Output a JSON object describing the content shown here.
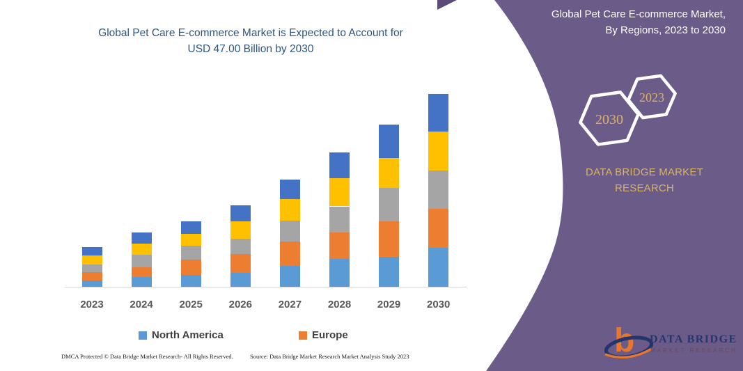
{
  "chart": {
    "title_line1": "Global Pet Care E-commerce Market is Expected to Account for",
    "title_line2": "USD 47.00 Billion by 2030",
    "title_color": "#2E567F"
  },
  "chart_data": {
    "type": "bar",
    "stacked": true,
    "unit": "USD Billion",
    "title": "Global Pet Care E-commerce Market is Expected to Account for USD 47.00 Billion by 2030",
    "categories": [
      "2023",
      "2024",
      "2025",
      "2026",
      "2027",
      "2028",
      "2029",
      "2030"
    ],
    "series": [
      {
        "name": "North America",
        "color": "#5B9BD5",
        "values": [
          1.7,
          2.5,
          3.0,
          3.5,
          5.3,
          6.9,
          7.5,
          9.6
        ]
      },
      {
        "name": "Europe",
        "color": "#ED7D31",
        "values": [
          2.0,
          2.4,
          3.7,
          4.6,
          5.9,
          6.4,
          8.5,
          9.5
        ]
      },
      {
        "name": "",
        "color": "#A5A5A5",
        "values": [
          1.9,
          3.0,
          3.4,
          3.7,
          5.0,
          6.4,
          8.1,
          9.3
        ]
      },
      {
        "name": "",
        "color": "#FFC000",
        "values": [
          2.2,
          2.7,
          3.0,
          4.2,
          5.2,
          6.8,
          7.4,
          9.5
        ]
      },
      {
        "name": "",
        "color": "#4472C4",
        "values": [
          2.0,
          2.7,
          3.0,
          3.9,
          4.8,
          6.3,
          8.0,
          9.1
        ]
      }
    ],
    "totals": [
      9.8,
      13.3,
      16.1,
      19.9,
      26.2,
      32.8,
      39.5,
      47.0
    ],
    "ylim": [
      0,
      47
    ],
    "grid": false,
    "legend_position": "bottom",
    "legend_visible_entries": [
      "North America",
      "Europe"
    ]
  },
  "legend": {
    "items": [
      {
        "label": "North America",
        "color": "#5B9BD5"
      },
      {
        "label": "Europe",
        "color": "#ED7D31"
      }
    ]
  },
  "footer": {
    "dmca": "DMCA Protected © Data Bridge Market Research-  All Rights Reserved.",
    "source": "Source: Data Bridge Market Research  Market Analysis Study 2023"
  },
  "panel": {
    "background": "#6A5B88",
    "accent_dark": "#5A4B77",
    "gold": "#D9B365",
    "title_line1": "Global Pet Care E-commerce Market,",
    "title_line2": "By Regions, 2023 to 2030",
    "hexagons": [
      {
        "label": "2030"
      },
      {
        "label": "2023"
      }
    ],
    "brand_line1": "DATA BRIDGE MARKET",
    "brand_line2": "RESEARCH",
    "logo": {
      "letter": "b",
      "word1": "DATA BRIDGE",
      "word2": "MARKET RESEARCH"
    }
  }
}
